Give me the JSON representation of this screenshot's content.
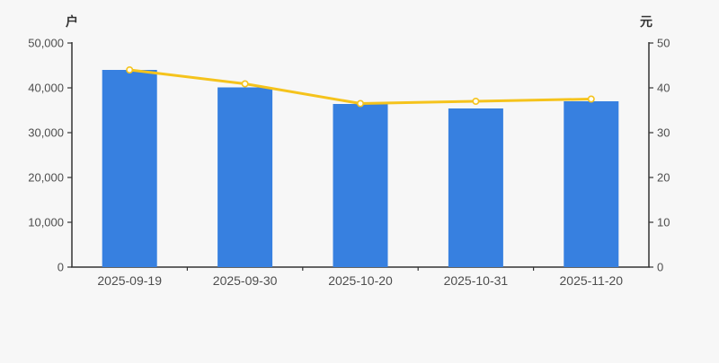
{
  "chart_data": {
    "type": "bar",
    "title": "",
    "categories": [
      "2025-09-19",
      "2025-09-30",
      "2025-10-20",
      "2025-10-31",
      "2025-11-20"
    ],
    "series": [
      {
        "name": "bar-series-left-axis",
        "type": "bar",
        "axis": "left",
        "unit": "户",
        "values": [
          44000,
          40100,
          36400,
          35400,
          37000
        ],
        "color": "#3780e0"
      },
      {
        "name": "line-series-right-axis",
        "type": "line",
        "axis": "right",
        "unit": "元",
        "values": [
          44.0,
          40.9,
          36.5,
          37.0,
          37.5
        ],
        "color": "#f5c31c",
        "marker_fill": "#fffdf2"
      }
    ],
    "left_axis": {
      "unit": "户",
      "min": 0,
      "max": 50000,
      "tick_step": 10000,
      "ticks": [
        "0",
        "10,000",
        "20,000",
        "30,000",
        "40,000",
        "50,000"
      ]
    },
    "right_axis": {
      "unit": "元",
      "min": 0,
      "max": 50,
      "tick_step": 10,
      "ticks": [
        "0",
        "10",
        "20",
        "30",
        "40",
        "50"
      ]
    },
    "grid": false,
    "legend_position": "none",
    "background": "#f7f7f7",
    "axis_color": "#333333",
    "tick_label_color": "#4e4e4e"
  }
}
